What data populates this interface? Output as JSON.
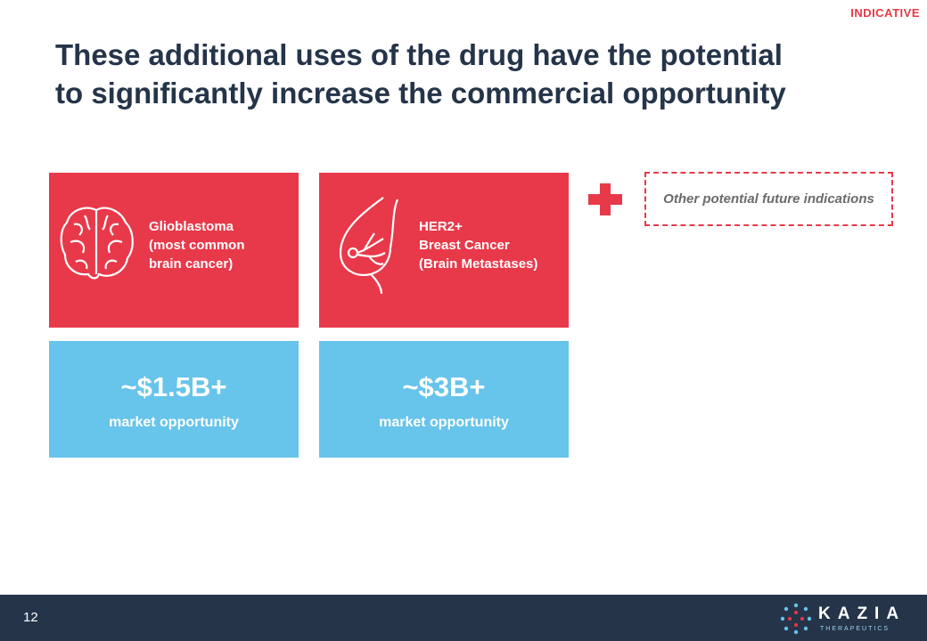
{
  "tag": "INDICATIVE",
  "title_lines": [
    "These additional uses of the drug have the potential",
    "to significantly increase the commercial opportunity"
  ],
  "cards": [
    {
      "label_lines": [
        "Glioblastoma",
        "(most common",
        "brain cancer)"
      ],
      "value": "~$1.5B+",
      "sublabel": "market opportunity"
    },
    {
      "label_lines": [
        "HER2+",
        "Breast Cancer",
        "(Brain Metastases)"
      ],
      "value": "~$3B+",
      "sublabel": "market opportunity"
    }
  ],
  "other": "Other potential future indications",
  "footer": {
    "page": "12",
    "logo": "KAZIA",
    "logo_sub": "THERAPEUTICS"
  }
}
